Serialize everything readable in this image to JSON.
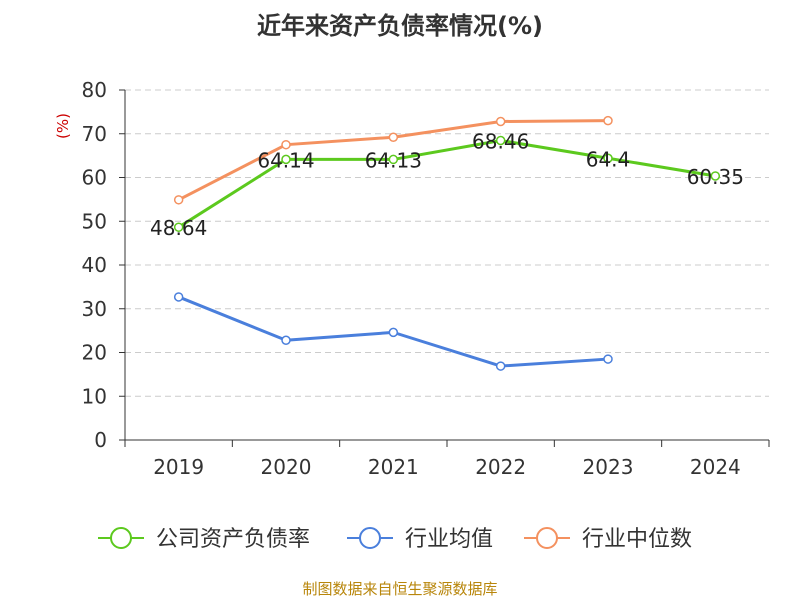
{
  "title": "近年来资产负债率情况(%)",
  "source": "制图数据来自恒生聚源数据库",
  "chart_data": {
    "type": "line",
    "title": "近年来资产负债率情况(%)",
    "ylabel": "(%)",
    "xlabel": "",
    "categories": [
      "2019",
      "2020",
      "2021",
      "2022",
      "2023",
      "2024"
    ],
    "ylim": [
      0,
      80
    ],
    "yticks": [
      0,
      10,
      20,
      30,
      40,
      50,
      60,
      70,
      80
    ],
    "grid": true,
    "legend_position": "bottom",
    "series": [
      {
        "name": "公司资产负债率",
        "color": "#5cc91e",
        "values": [
          48.64,
          64.14,
          64.13,
          68.46,
          64.4,
          60.35
        ],
        "labels": [
          "48.64",
          "64.14",
          "64.13",
          "68.46",
          "64.4",
          "60.35"
        ]
      },
      {
        "name": "行业均值",
        "color": "#4a7fdc",
        "values": [
          32.7,
          22.8,
          24.6,
          16.9,
          18.5,
          null
        ]
      },
      {
        "name": "行业中位数",
        "color": "#f4915f",
        "values": [
          54.9,
          67.5,
          69.2,
          72.8,
          73.0,
          null
        ]
      }
    ]
  }
}
